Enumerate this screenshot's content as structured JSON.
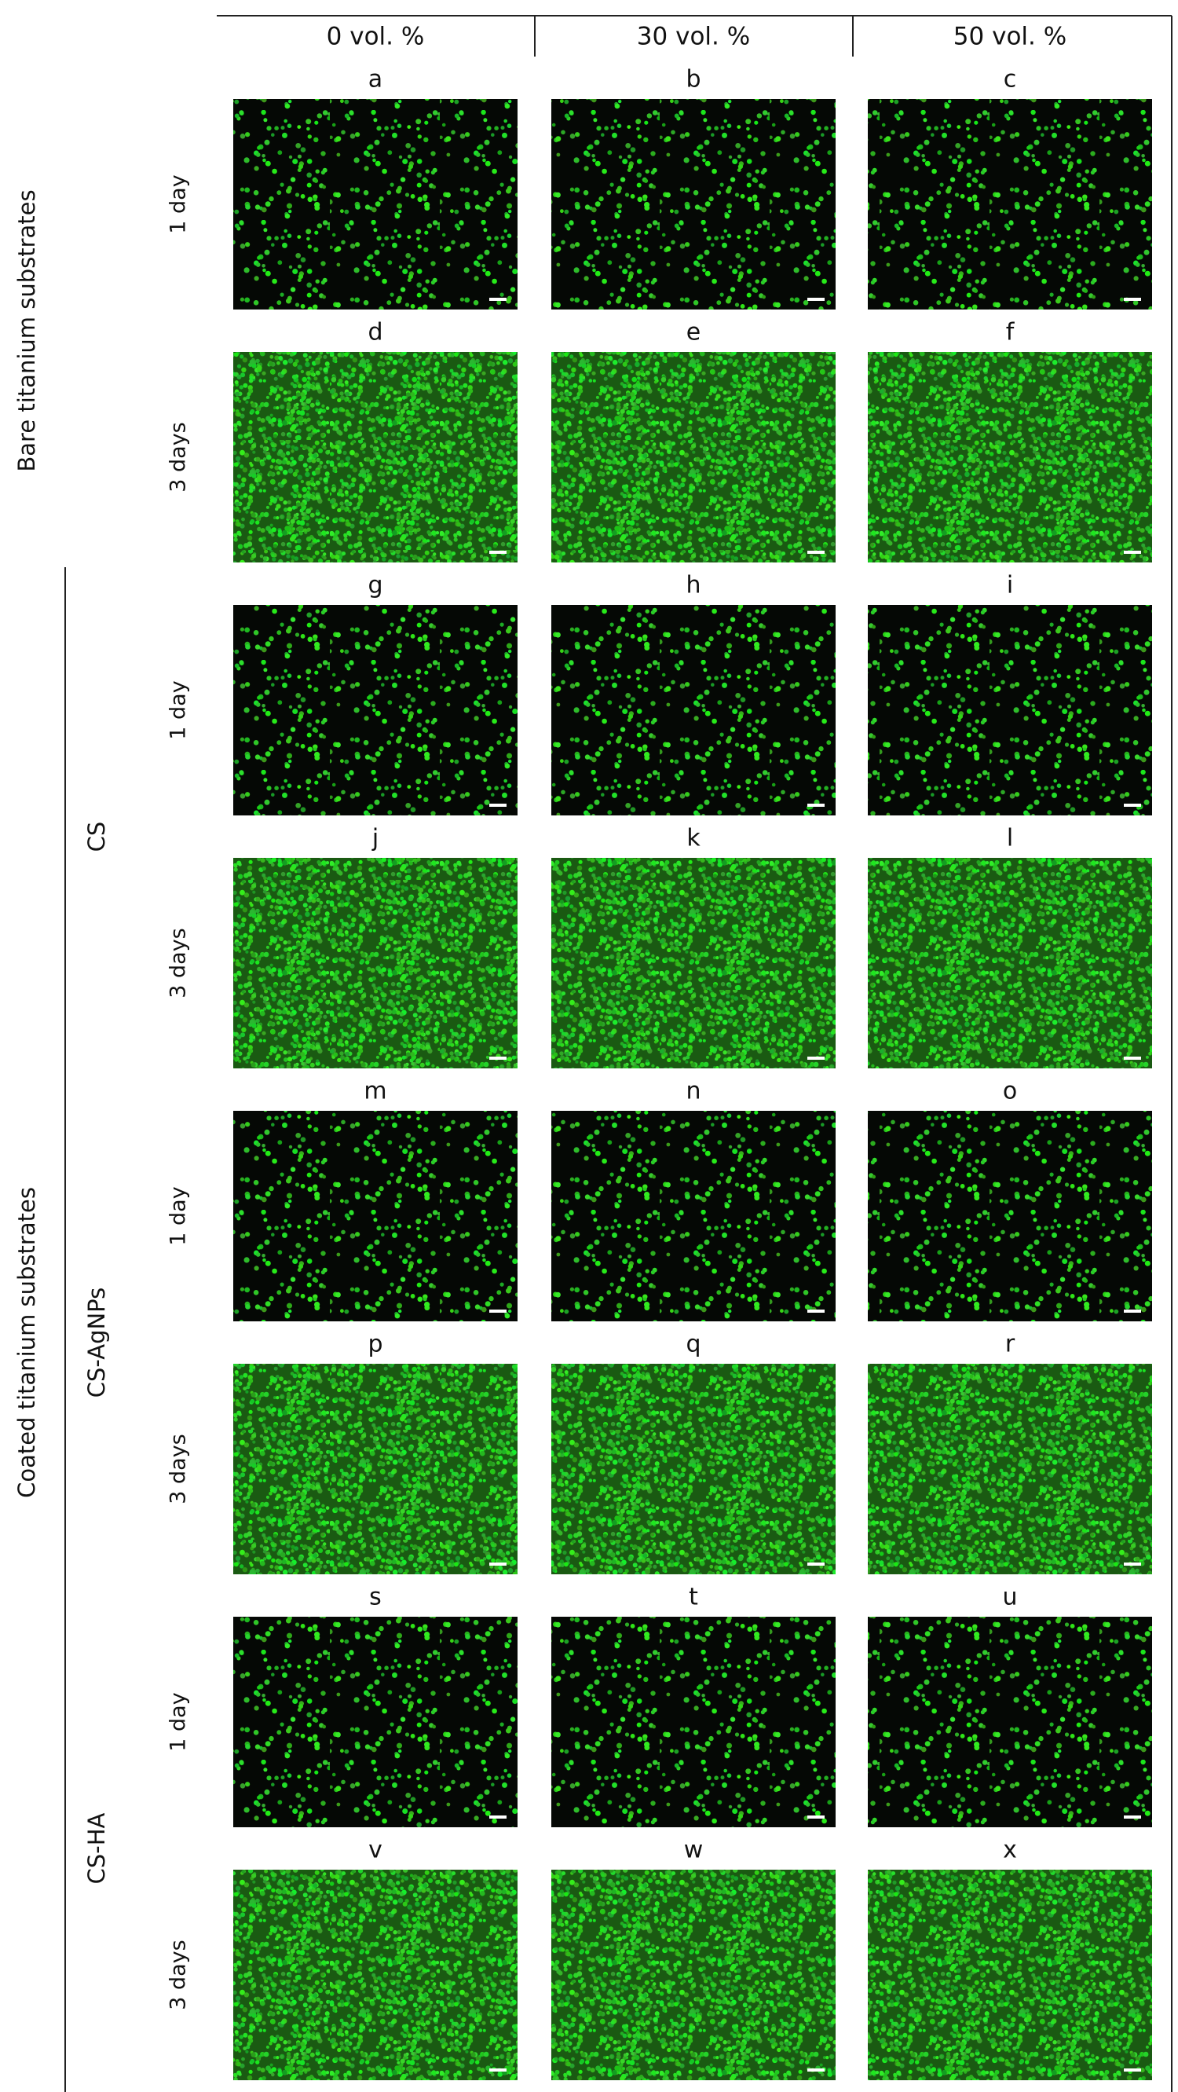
{
  "columns": [
    "0 vol. %",
    "30 vol. %",
    "50 vol. %"
  ],
  "groups": [
    {
      "label": "Bare titanium substrates"
    },
    {
      "label": "Coated titanium substrates",
      "subgroups": [
        "CS",
        "CS-AgNPs",
        "CS-HA"
      ]
    }
  ],
  "rows": [
    {
      "time": "1 day",
      "panels": [
        "a",
        "b",
        "c"
      ]
    },
    {
      "time": "3 days",
      "panels": [
        "d",
        "e",
        "f"
      ]
    },
    {
      "time": "1 day",
      "panels": [
        "g",
        "h",
        "i"
      ]
    },
    {
      "time": "3 days",
      "panels": [
        "j",
        "k",
        "l"
      ]
    },
    {
      "time": "1 day",
      "panels": [
        "m",
        "n",
        "o"
      ]
    },
    {
      "time": "3 days",
      "panels": [
        "p",
        "q",
        "r"
      ]
    },
    {
      "time": "1 day",
      "panels": [
        "s",
        "t",
        "u"
      ]
    },
    {
      "time": "3 days",
      "panels": [
        "v",
        "w",
        "x"
      ]
    }
  ]
}
